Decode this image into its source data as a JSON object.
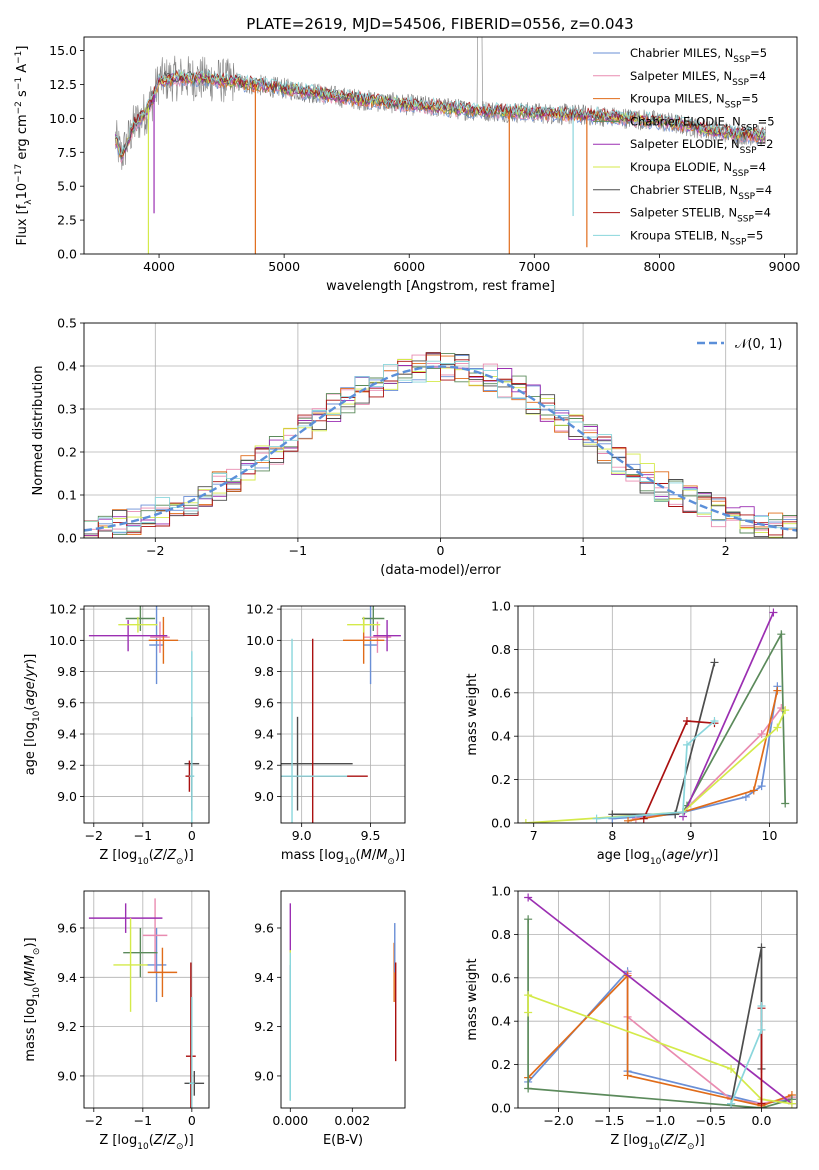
{
  "figure_title": "PLATE=2619, MJD=54506, FIBERID=0556, z=0.043",
  "colors": {
    "Chabrier MILES": "#6a8fd6",
    "Salpeter MILES": "#e98bb0",
    "Kroupa MILES": "#e06c1a",
    "Chabrier ELODIE": "#5b8a5b",
    "Salpeter ELODIE": "#9b2fb2",
    "Kroupa ELODIE": "#d4ea4a",
    "Chabrier STELIB": "#4d4d4d",
    "Salpeter STELIB": "#aa1111",
    "Kroupa STELIB": "#8ad6dc",
    "data": "#808080",
    "normal": "#5b8fd9"
  },
  "chart_data": [
    {
      "type": "line",
      "id": "spectrum",
      "title": "PLATE=2619, MJD=54506, FIBERID=0556, z=0.043",
      "xlabel": "wavelength [Angstrom, rest frame]",
      "ylabel": "Flux [f_λ 10^-17 erg cm^-2 s^-1 A^-1]",
      "xlim": [
        3400,
        9100
      ],
      "ylim": [
        0,
        16
      ],
      "xticks": [
        "4000",
        "5000",
        "6000",
        "7000",
        "8000",
        "9000"
      ],
      "yticks": [
        "0.0",
        "2.5",
        "5.0",
        "7.5",
        "10.0",
        "12.5",
        "15.0"
      ],
      "legend_position": "top-right",
      "legend": [
        {
          "name": "Chabrier MILES",
          "nssp": "5"
        },
        {
          "name": "Salpeter MILES",
          "nssp": "4"
        },
        {
          "name": "Kroupa MILES",
          "nssp": "5"
        },
        {
          "name": "Chabrier ELODIE",
          "nssp": "5"
        },
        {
          "name": "Salpeter ELODIE",
          "nssp": "2"
        },
        {
          "name": "Kroupa ELODIE",
          "nssp": "4"
        },
        {
          "name": "Chabrier STELIB",
          "nssp": "4"
        },
        {
          "name": "Salpeter STELIB",
          "nssp": "4"
        },
        {
          "name": "Kroupa STELIB",
          "nssp": "5"
        }
      ],
      "continuum": [
        [
          3650,
          8.5
        ],
        [
          3700,
          7.2
        ],
        [
          3800,
          9.5
        ],
        [
          3900,
          10.5
        ],
        [
          3950,
          11.5
        ],
        [
          4000,
          12.8
        ],
        [
          4200,
          13.0
        ],
        [
          4500,
          12.8
        ],
        [
          5000,
          12.2
        ],
        [
          5500,
          11.5
        ],
        [
          6000,
          11.0
        ],
        [
          6500,
          10.6
        ],
        [
          7000,
          10.4
        ],
        [
          7500,
          10.2
        ],
        [
          8000,
          9.8
        ],
        [
          8500,
          9.0
        ],
        [
          8800,
          8.7
        ]
      ],
      "series_range": [
        3650,
        8850
      ]
    },
    {
      "type": "histogram",
      "id": "residuals",
      "xlabel": "(data-model)/error",
      "ylabel": "Normed distribution",
      "xlim": [
        -2.5,
        2.5
      ],
      "ylim": [
        0,
        0.5
      ],
      "xticks": [
        "−2",
        "−1",
        "0",
        "1",
        "2"
      ],
      "yticks": [
        "0.0",
        "0.1",
        "0.2",
        "0.3",
        "0.4",
        "0.5"
      ],
      "legend_label": "𝒩(0, 1)",
      "legend_position": "top-right",
      "grid": true,
      "bin_width": 0.1
    },
    {
      "type": "scatter",
      "id": "age-vs-Z",
      "xlabel": "Z [log10(Z/Z⊙)]",
      "ylabel": "age  [log10(age/yr)]",
      "xlim": [
        -2.2,
        0.35
      ],
      "ylim": [
        8.83,
        10.22
      ],
      "xticks": [
        "−2",
        "−1",
        "0"
      ],
      "yticks": [
        "9.0",
        "9.2",
        "9.4",
        "9.6",
        "9.8",
        "10.0",
        "10.2"
      ],
      "grid": true,
      "points": [
        {
          "series": "Chabrier MILES",
          "x": -0.72,
          "y": 9.97,
          "xerr": 0.15,
          "yerr": 0.25
        },
        {
          "series": "Salpeter MILES",
          "x": -0.65,
          "y": 10.02,
          "xerr": 0.2,
          "yerr": 0.1
        },
        {
          "series": "Kroupa MILES",
          "x": -0.58,
          "y": 10.0,
          "xerr": 0.3,
          "yerr": 0.15
        },
        {
          "series": "Chabrier ELODIE",
          "x": -1.05,
          "y": 10.14,
          "xerr": 0.3,
          "yerr": 0.08
        },
        {
          "series": "Salpeter ELODIE",
          "x": -1.3,
          "y": 10.03,
          "xerr": 0.8,
          "yerr": 0.1
        },
        {
          "series": "Kroupa ELODIE",
          "x": -1.1,
          "y": 10.1,
          "xerr": 0.4,
          "yerr": 0.05
        },
        {
          "series": "Chabrier STELIB",
          "x": 0.0,
          "y": 9.21,
          "xerr": 0.15,
          "yerr": 0.3
        },
        {
          "series": "Salpeter STELIB",
          "x": -0.05,
          "y": 9.13,
          "xerr": 0.08,
          "yerr": 0.1
        },
        {
          "series": "Kroupa STELIB",
          "x": 0.0,
          "y": 9.13,
          "xerr": 0.05,
          "yerr": 0.8
        }
      ]
    },
    {
      "type": "scatter",
      "id": "age-vs-mass",
      "xlabel": "mass [log10(M/M⊙)]",
      "ylabel": "",
      "xlim": [
        8.85,
        9.75
      ],
      "ylim": [
        8.83,
        10.22
      ],
      "xticks": [
        "9.0",
        "9.5"
      ],
      "yticks": [
        "9.0",
        "9.2",
        "9.4",
        "9.6",
        "9.8",
        "10.0",
        "10.2"
      ],
      "grid": true,
      "points": [
        {
          "series": "Chabrier MILES",
          "x": 9.5,
          "y": 9.97,
          "xerr": 0.05,
          "yerr": 0.25
        },
        {
          "series": "Salpeter MILES",
          "x": 9.55,
          "y": 10.02,
          "xerr": 0.1,
          "yerr": 0.1
        },
        {
          "series": "Kroupa MILES",
          "x": 9.45,
          "y": 10.0,
          "xerr": 0.15,
          "yerr": 0.15
        },
        {
          "series": "Chabrier ELODIE",
          "x": 9.52,
          "y": 10.14,
          "xerr": 0.08,
          "yerr": 0.08
        },
        {
          "series": "Salpeter ELODIE",
          "x": 9.62,
          "y": 10.03,
          "xerr": 0.1,
          "yerr": 0.1
        },
        {
          "series": "Kroupa ELODIE",
          "x": 9.45,
          "y": 10.1,
          "xerr": 0.12,
          "yerr": 0.05
        },
        {
          "series": "Chabrier STELIB",
          "x": 8.97,
          "y": 9.21,
          "xerr": 0.4,
          "yerr": 0.3
        },
        {
          "series": "Salpeter STELIB",
          "x": 9.08,
          "y": 9.13,
          "xerr": 0.4,
          "yerr": 0.88
        },
        {
          "series": "Kroupa STELIB",
          "x": 8.93,
          "y": 9.13,
          "xerr": 0.4,
          "yerr": 0.88
        }
      ]
    },
    {
      "type": "line",
      "id": "mass-weight-vs-age",
      "xlabel": "age  [log10(age/yr)]",
      "ylabel": "mass weight",
      "xlim": [
        6.8,
        10.35
      ],
      "ylim": [
        0,
        1.0
      ],
      "xticks": [
        "7",
        "8",
        "9",
        "10"
      ],
      "yticks": [
        "0.0",
        "0.2",
        "0.4",
        "0.6",
        "0.8",
        "1.0"
      ],
      "grid": true,
      "series": [
        {
          "name": "Chabrier MILES",
          "x": [
            8.0,
            8.8,
            9.7,
            9.9,
            10.1
          ],
          "y": [
            0.02,
            0.04,
            0.12,
            0.17,
            0.63
          ]
        },
        {
          "name": "Salpeter MILES",
          "x": [
            8.3,
            8.9,
            9.9,
            10.15
          ],
          "y": [
            0.02,
            0.05,
            0.41,
            0.53
          ]
        },
        {
          "name": "Kroupa MILES",
          "x": [
            8.2,
            8.9,
            9.8,
            10.1
          ],
          "y": [
            0.01,
            0.05,
            0.15,
            0.61
          ]
        },
        {
          "name": "Chabrier ELODIE",
          "x": [
            8.9,
            8.95,
            10.15,
            10.2
          ],
          "y": [
            0.05,
            0.08,
            0.87,
            0.09
          ]
        },
        {
          "name": "Salpeter ELODIE",
          "x": [
            8.9,
            10.05
          ],
          "y": [
            0.03,
            0.97
          ]
        },
        {
          "name": "Kroupa ELODIE",
          "x": [
            6.9,
            8.9,
            10.1,
            10.2
          ],
          "y": [
            0.0,
            0.05,
            0.44,
            0.52
          ]
        },
        {
          "name": "Chabrier STELIB",
          "x": [
            8.0,
            8.8,
            9.3
          ],
          "y": [
            0.04,
            0.04,
            0.74
          ]
        },
        {
          "name": "Salpeter STELIB",
          "x": [
            8.4,
            8.95,
            9.3
          ],
          "y": [
            0.02,
            0.47,
            0.46
          ]
        },
        {
          "name": "Kroupa STELIB",
          "x": [
            7.8,
            8.9,
            8.95,
            9.3
          ],
          "y": [
            0.02,
            0.05,
            0.36,
            0.47
          ]
        }
      ]
    },
    {
      "type": "scatter",
      "id": "mass-vs-Z",
      "xlabel": "Z [log10(Z/Z⊙)]",
      "ylabel": "mass [log10(M/M⊙)]",
      "xlim": [
        -2.2,
        0.35
      ],
      "ylim": [
        8.87,
        9.75
      ],
      "xticks": [
        "−2",
        "−1",
        "0"
      ],
      "yticks": [
        "9.0",
        "9.2",
        "9.4",
        "9.6"
      ],
      "grid": true,
      "points": [
        {
          "series": "Chabrier MILES",
          "x": -0.72,
          "y": 9.45,
          "xerr": 0.2,
          "yerr": 0.15
        },
        {
          "series": "Salpeter MILES",
          "x": -0.75,
          "y": 9.57,
          "xerr": 0.25,
          "yerr": 0.15
        },
        {
          "series": "Kroupa MILES",
          "x": -0.6,
          "y": 9.42,
          "xerr": 0.3,
          "yerr": 0.1
        },
        {
          "series": "Chabrier ELODIE",
          "x": -1.05,
          "y": 9.5,
          "xerr": 0.35,
          "yerr": 0.1
        },
        {
          "series": "Salpeter ELODIE",
          "x": -1.35,
          "y": 9.64,
          "xerr": 0.75,
          "yerr": 0.06
        },
        {
          "series": "Kroupa ELODIE",
          "x": -1.25,
          "y": 9.45,
          "xerr": 0.35,
          "yerr": 0.19
        },
        {
          "series": "Chabrier STELIB",
          "x": 0.05,
          "y": 8.97,
          "xerr": 0.2,
          "yerr": 0.05
        },
        {
          "series": "Salpeter STELIB",
          "x": -0.02,
          "y": 9.08,
          "xerr": 0.1,
          "yerr": 0.38
        },
        {
          "series": "Kroupa STELIB",
          "x": 0.0,
          "y": 8.97,
          "xerr": 0.05,
          "yerr": 0.35
        }
      ]
    },
    {
      "type": "scatter",
      "id": "mass-vs-EBV",
      "xlabel": "E(B-V)",
      "ylabel": "",
      "xlim": [
        -0.0003,
        0.0037
      ],
      "ylim": [
        8.87,
        9.75
      ],
      "xticks": [
        "0.000",
        "0.002"
      ],
      "yticks": [
        "9.0",
        "9.2",
        "9.4",
        "9.6"
      ],
      "grid": false,
      "points": [
        {
          "series": "Salpeter ELODIE",
          "x": 0.0,
          "y": 9.6,
          "xerr": 0,
          "yerr": 0.1
        },
        {
          "series": "Kroupa ELODIE",
          "x": 0.0,
          "y": 9.45,
          "xerr": 0,
          "yerr": 0.06
        },
        {
          "series": "Chabrier STELIB",
          "x": 0.0,
          "y": 9.35,
          "xerr": 0,
          "yerr": 0.1
        },
        {
          "series": "Chabrier ELODIE",
          "x": 0.0,
          "y": 9.1,
          "xerr": 0,
          "yerr": 0.2
        },
        {
          "series": "Kroupa STELIB",
          "x": 0.0,
          "y": 9.2,
          "xerr": 0,
          "yerr": 0.3
        },
        {
          "series": "Kroupa MILES",
          "x": 0.00335,
          "y": 9.42,
          "xerr": 0,
          "yerr": 0.12
        },
        {
          "series": "Chabrier MILES",
          "x": 0.00337,
          "y": 9.52,
          "xerr": 0,
          "yerr": 0.1
        },
        {
          "series": "Salpeter STELIB",
          "x": 0.0034,
          "y": 9.26,
          "xerr": 0,
          "yerr": 0.2
        }
      ]
    },
    {
      "type": "line",
      "id": "mass-weight-vs-Z",
      "xlabel": "Z [log10(Z/Z⊙)]",
      "ylabel": "mass weight",
      "xlim": [
        -2.4,
        0.35
      ],
      "ylim": [
        0,
        1.0
      ],
      "xticks": [
        "−2.0",
        "−1.5",
        "−1.0",
        "−0.5",
        "0.0"
      ],
      "yticks": [
        "0.0",
        "0.2",
        "0.4",
        "0.6",
        "0.8",
        "1.0"
      ],
      "grid": true,
      "series": [
        {
          "name": "Chabrier MILES",
          "x": [
            -2.3,
            -1.32,
            -1.32,
            0.0,
            0.3
          ],
          "y": [
            0.12,
            0.63,
            0.17,
            0.02,
            0.04
          ]
        },
        {
          "name": "Salpeter MILES",
          "x": [
            -1.32,
            -1.32,
            -0.3,
            0.0,
            0.3
          ],
          "y": [
            0.62,
            0.42,
            0.04,
            0.02,
            0.05
          ]
        },
        {
          "name": "Kroupa MILES",
          "x": [
            -2.3,
            -1.32,
            -1.32,
            0.0,
            0.3
          ],
          "y": [
            0.14,
            0.61,
            0.15,
            0.01,
            0.06
          ]
        },
        {
          "name": "Chabrier ELODIE",
          "x": [
            -2.3,
            -2.3,
            0.0,
            0.3
          ],
          "y": [
            0.87,
            0.09,
            0.0,
            0.04
          ]
        },
        {
          "name": "Salpeter ELODIE",
          "x": [
            -2.3,
            0.3
          ],
          "y": [
            0.97,
            0.02
          ]
        },
        {
          "name": "Kroupa ELODIE",
          "x": [
            -2.3,
            -2.3,
            -0.3,
            0.0,
            0.3
          ],
          "y": [
            0.44,
            0.52,
            0.18,
            0.04,
            0.02
          ]
        },
        {
          "name": "Chabrier STELIB",
          "x": [
            -0.3,
            0.0,
            0.0
          ],
          "y": [
            0.02,
            0.74,
            0.18
          ]
        },
        {
          "name": "Salpeter STELIB",
          "x": [
            0.0,
            0.0
          ],
          "y": [
            0.02,
            0.46
          ]
        },
        {
          "name": "Kroupa STELIB",
          "x": [
            -0.3,
            0.0,
            0.0
          ],
          "y": [
            0.02,
            0.36,
            0.47
          ]
        }
      ]
    }
  ]
}
